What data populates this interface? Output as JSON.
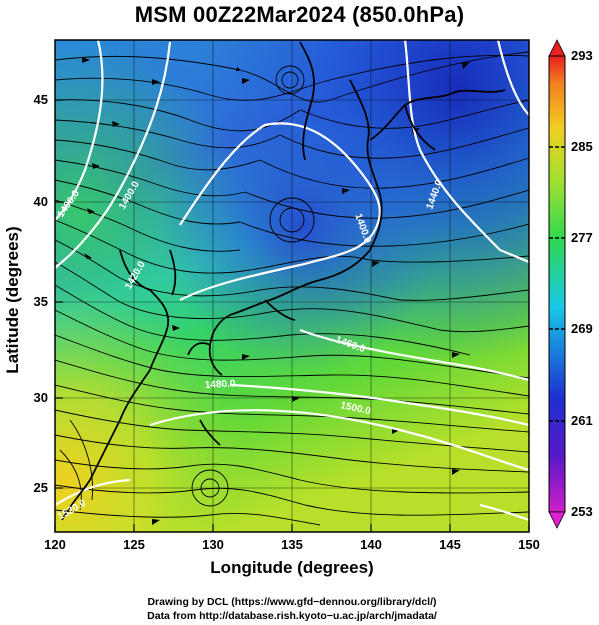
{
  "title": "MSM 00Z22Mar2024 (850.0hPa)",
  "axes": {
    "xlabel": "Longitude (degrees)",
    "ylabel": "Latitude  (degrees)",
    "x_ticks": [
      "120",
      "125",
      "130",
      "135",
      "140",
      "145",
      "150"
    ],
    "y_ticks": [
      "45",
      "40",
      "35",
      "30",
      "25"
    ]
  },
  "colorbar": {
    "ticks": [
      "293",
      "285",
      "277",
      "269",
      "261",
      "253"
    ],
    "min": 253,
    "max": 293
  },
  "contour_labels": [
    "1400.0",
    "1400.0",
    "1420.0",
    "1400.0",
    "1440.0",
    "1460.0",
    "1480.0",
    "1500.0",
    "1520.0"
  ],
  "credits": {
    "line1": "Drawing by DCL (https://www.gfd−dennou.org/library/dcl/)",
    "line2": "Data from http://database.rish.kyoto−u.ac.jp/arch/jmadata/"
  },
  "colors": {
    "cold": "#1f3fd0",
    "mid": "#19c8c8",
    "warm": "#3ad43a",
    "hot": "#f0e020",
    "contour": "#ffffff"
  }
}
